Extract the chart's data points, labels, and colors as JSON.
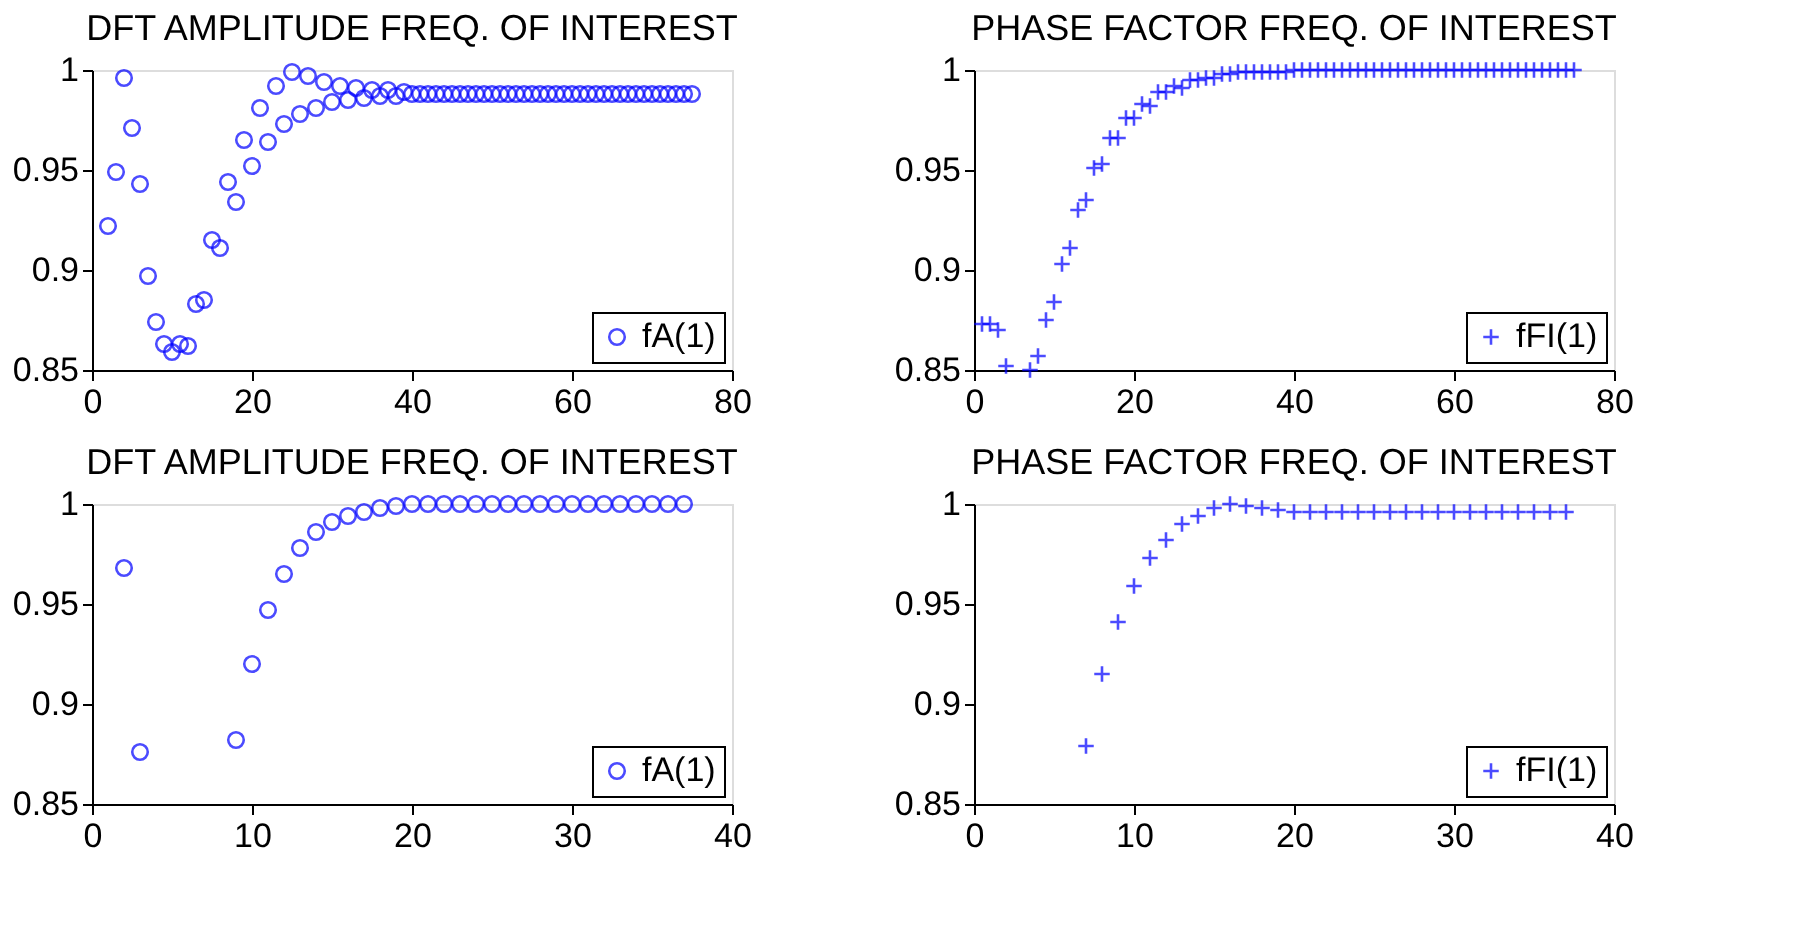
{
  "chart_data": [
    {
      "type": "scatter",
      "title": "DFT AMPLITUDE FREQ. OF INTEREST",
      "marker": "circle",
      "legend": "bottom right",
      "grid": false,
      "xlim": [
        0,
        80
      ],
      "xticks": [
        0,
        20,
        40,
        60,
        80
      ],
      "ylim": [
        0.85,
        1
      ],
      "yticks": [
        0.85,
        0.9,
        0.95,
        1
      ],
      "series": [
        {
          "name": "fA(1)",
          "color": "#0000ff",
          "x": [
            2,
            3,
            4,
            5,
            6,
            7,
            8,
            9,
            10,
            11,
            12,
            13,
            14,
            15,
            16,
            17,
            18,
            19,
            20,
            21,
            22,
            23,
            24,
            25,
            26,
            27,
            28,
            29,
            30,
            31,
            32,
            33,
            34,
            35,
            36,
            37,
            38,
            39,
            40,
            41,
            42,
            43,
            44,
            45,
            46,
            47,
            48,
            49,
            50,
            51,
            52,
            53,
            54,
            55,
            56,
            57,
            58,
            59,
            60,
            61,
            62,
            63,
            64,
            65,
            66,
            67,
            68,
            69,
            70,
            71,
            72,
            73,
            74,
            75
          ],
          "values": [
            0.922,
            0.949,
            0.996,
            0.971,
            0.943,
            0.897,
            0.874,
            0.863,
            0.859,
            0.863,
            0.862,
            0.883,
            0.885,
            0.915,
            0.911,
            0.944,
            0.934,
            0.965,
            0.952,
            0.981,
            0.964,
            0.992,
            0.973,
            0.999,
            0.978,
            0.997,
            0.981,
            0.994,
            0.984,
            0.992,
            0.985,
            0.991,
            0.986,
            0.99,
            0.987,
            0.99,
            0.987,
            0.989,
            0.988,
            0.988,
            0.988,
            0.988,
            0.988,
            0.988,
            0.988,
            0.988,
            0.988,
            0.988,
            0.988,
            0.988,
            0.988,
            0.988,
            0.988,
            0.988,
            0.988,
            0.988,
            0.988,
            0.988,
            0.988,
            0.988,
            0.988,
            0.988,
            0.988,
            0.988,
            0.988,
            0.988,
            0.988,
            0.988,
            0.988,
            0.988,
            0.988,
            0.988,
            0.988,
            0.988
          ]
        }
      ]
    },
    {
      "type": "scatter",
      "title": "PHASE FACTOR FREQ. OF INTEREST",
      "marker": "cross",
      "legend": "bottom right",
      "grid": false,
      "xlim": [
        0,
        80
      ],
      "xticks": [
        0,
        20,
        40,
        60,
        80
      ],
      "ylim": [
        0.85,
        1
      ],
      "yticks": [
        0.85,
        0.9,
        0.95,
        1
      ],
      "series": [
        {
          "name": "fFI(1)",
          "color": "#0000ff",
          "x": [
            1,
            2,
            3,
            4,
            7,
            8,
            9,
            10,
            11,
            12,
            13,
            14,
            15,
            16,
            17,
            18,
            19,
            20,
            21,
            22,
            23,
            24,
            25,
            26,
            27,
            28,
            29,
            30,
            31,
            32,
            33,
            34,
            35,
            36,
            37,
            38,
            39,
            40,
            41,
            42,
            43,
            44,
            45,
            46,
            47,
            48,
            49,
            50,
            51,
            52,
            53,
            54,
            55,
            56,
            57,
            58,
            59,
            60,
            61,
            62,
            63,
            64,
            65,
            66,
            67,
            68,
            69,
            70,
            71,
            72,
            73,
            74,
            75
          ],
          "values": [
            0.873,
            0.873,
            0.87,
            0.852,
            0.85,
            0.857,
            0.875,
            0.884,
            0.903,
            0.911,
            0.93,
            0.935,
            0.951,
            0.953,
            0.966,
            0.966,
            0.976,
            0.976,
            0.983,
            0.982,
            0.989,
            0.989,
            0.992,
            0.991,
            0.995,
            0.995,
            0.996,
            0.996,
            0.998,
            0.998,
            0.999,
            0.999,
            0.999,
            0.999,
            0.999,
            0.999,
            0.999,
            1,
            1,
            1,
            1,
            1,
            1,
            1,
            1,
            1,
            1,
            1,
            1,
            1,
            1,
            1,
            1,
            1,
            1,
            1,
            1,
            1,
            1,
            1,
            1,
            1,
            1,
            1,
            1,
            1,
            1,
            1,
            1,
            1,
            1,
            1,
            1
          ]
        }
      ]
    },
    {
      "type": "scatter",
      "title": "DFT AMPLITUDE FREQ. OF INTEREST",
      "marker": "circle",
      "legend": "bottom right",
      "grid": false,
      "xlim": [
        0,
        40
      ],
      "xticks": [
        0,
        10,
        20,
        30,
        40
      ],
      "ylim": [
        0.85,
        1
      ],
      "yticks": [
        0.85,
        0.9,
        0.95,
        1
      ],
      "series": [
        {
          "name": "fA(1)",
          "color": "#0000ff",
          "x": [
            2,
            3,
            9,
            10,
            11,
            12,
            13,
            14,
            15,
            16,
            17,
            18,
            19,
            20,
            21,
            22,
            23,
            24,
            25,
            26,
            27,
            28,
            29,
            30,
            31,
            32,
            33,
            34,
            35,
            36,
            37
          ],
          "values": [
            0.968,
            0.876,
            0.882,
            0.92,
            0.947,
            0.965,
            0.978,
            0.986,
            0.991,
            0.994,
            0.996,
            0.998,
            0.999,
            1,
            1,
            1,
            1,
            1,
            1,
            1,
            1,
            1,
            1,
            1,
            1,
            1,
            1,
            1,
            1,
            1,
            1
          ]
        }
      ]
    },
    {
      "type": "scatter",
      "title": "PHASE FACTOR FREQ. OF INTEREST",
      "marker": "cross",
      "legend": "bottom right",
      "grid": false,
      "xlim": [
        0,
        40
      ],
      "xticks": [
        0,
        10,
        20,
        30,
        40
      ],
      "ylim": [
        0.85,
        1
      ],
      "yticks": [
        0.85,
        0.9,
        0.95,
        1
      ],
      "series": [
        {
          "name": "fFI(1)",
          "color": "#0000ff",
          "x": [
            7,
            8,
            9,
            10,
            11,
            12,
            13,
            14,
            15,
            16,
            17,
            18,
            19,
            20,
            21,
            22,
            23,
            24,
            25,
            26,
            27,
            28,
            29,
            30,
            31,
            32,
            33,
            34,
            35,
            36,
            37
          ],
          "values": [
            0.879,
            0.915,
            0.941,
            0.959,
            0.973,
            0.982,
            0.99,
            0.994,
            0.998,
            1,
            0.999,
            0.998,
            0.997,
            0.996,
            0.996,
            0.996,
            0.996,
            0.996,
            0.996,
            0.996,
            0.996,
            0.996,
            0.996,
            0.996,
            0.996,
            0.996,
            0.996,
            0.996,
            0.996,
            0.996,
            0.996
          ]
        }
      ]
    }
  ]
}
